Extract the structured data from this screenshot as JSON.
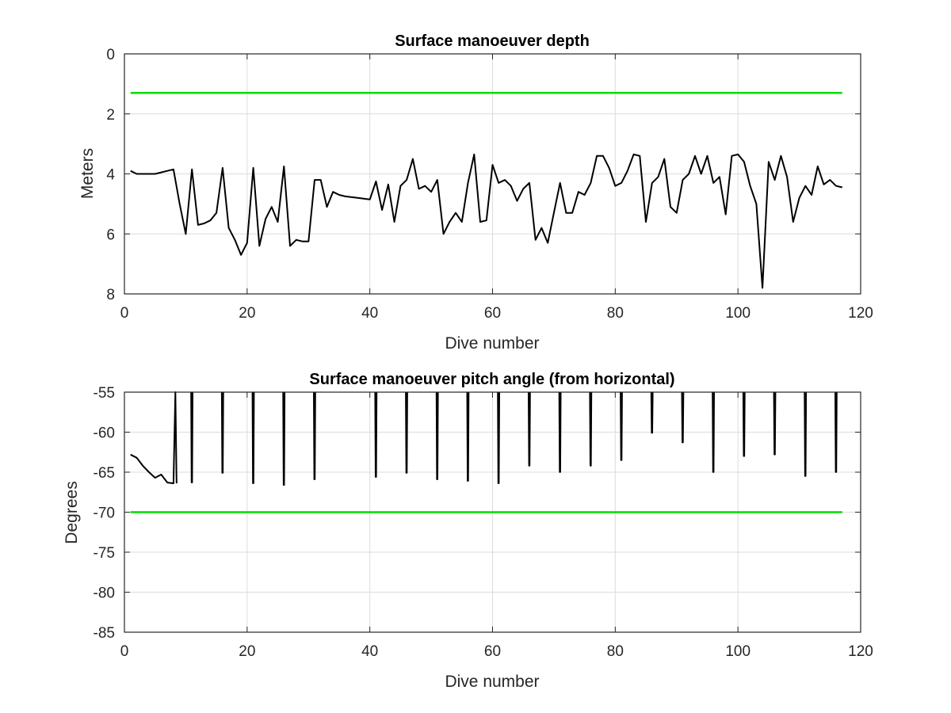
{
  "chart_data": [
    {
      "type": "line",
      "title": "Surface manoeuver depth",
      "xlabel": "Dive number",
      "ylabel": "Meters",
      "xlim": [
        0,
        120
      ],
      "ylim": [
        0,
        8
      ],
      "y_reversed": true,
      "grid": true,
      "xticks": [
        "0",
        "20",
        "40",
        "60",
        "80",
        "100",
        "120"
      ],
      "yticks": [
        "0",
        "2",
        "4",
        "6",
        "8"
      ],
      "reference_line": {
        "y": 1.3,
        "x_range": [
          1,
          117
        ],
        "color": "#00dd00"
      },
      "series": [
        {
          "color": "#000000",
          "points": [
            [
              1,
              3.9
            ],
            [
              2,
              4.0
            ],
            [
              3,
              4.0
            ],
            [
              4,
              4.0
            ],
            [
              5,
              4.0
            ],
            [
              6,
              3.95
            ],
            [
              7,
              3.9
            ],
            [
              8,
              3.85
            ],
            [
              9,
              5.0
            ],
            [
              10,
              6.0
            ],
            [
              11,
              3.85
            ],
            [
              12,
              5.7
            ],
            [
              13,
              5.65
            ],
            [
              14,
              5.55
            ],
            [
              15,
              5.3
            ],
            [
              16,
              3.8
            ],
            [
              17,
              5.8
            ],
            [
              18,
              6.2
            ],
            [
              19,
              6.7
            ],
            [
              20,
              6.3
            ],
            [
              21,
              3.8
            ],
            [
              22,
              6.4
            ],
            [
              23,
              5.5
            ],
            [
              24,
              5.1
            ],
            [
              25,
              5.6
            ],
            [
              26,
              3.75
            ],
            [
              27,
              6.4
            ],
            [
              28,
              6.2
            ],
            [
              29,
              6.25
            ],
            [
              30,
              6.25
            ],
            [
              31,
              4.2
            ],
            [
              32,
              4.2
            ],
            [
              33,
              5.1
            ],
            [
              34,
              4.6
            ],
            [
              35,
              4.7
            ],
            [
              36,
              4.75
            ],
            [
              38,
              4.8
            ],
            [
              40,
              4.85
            ],
            [
              41,
              4.25
            ],
            [
              42,
              5.2
            ],
            [
              43,
              4.35
            ],
            [
              44,
              5.6
            ],
            [
              45,
              4.4
            ],
            [
              46,
              4.2
            ],
            [
              47,
              3.5
            ],
            [
              48,
              4.5
            ],
            [
              49,
              4.4
            ],
            [
              50,
              4.6
            ],
            [
              51,
              4.2
            ],
            [
              52,
              6.0
            ],
            [
              53,
              5.6
            ],
            [
              54,
              5.3
            ],
            [
              55,
              5.6
            ],
            [
              56,
              4.3
            ],
            [
              57,
              3.35
            ],
            [
              58,
              5.6
            ],
            [
              59,
              5.55
            ],
            [
              60,
              3.7
            ],
            [
              61,
              4.3
            ],
            [
              62,
              4.2
            ],
            [
              63,
              4.4
            ],
            [
              64,
              4.9
            ],
            [
              65,
              4.5
            ],
            [
              66,
              4.3
            ],
            [
              67,
              6.2
            ],
            [
              68,
              5.8
            ],
            [
              69,
              6.3
            ],
            [
              70,
              5.3
            ],
            [
              71,
              4.3
            ],
            [
              72,
              5.3
            ],
            [
              73,
              5.3
            ],
            [
              74,
              4.6
            ],
            [
              75,
              4.7
            ],
            [
              76,
              4.3
            ],
            [
              77,
              3.4
            ],
            [
              78,
              3.4
            ],
            [
              79,
              3.8
            ],
            [
              80,
              4.4
            ],
            [
              81,
              4.3
            ],
            [
              82,
              3.9
            ],
            [
              83,
              3.35
            ],
            [
              84,
              3.4
            ],
            [
              85,
              5.6
            ],
            [
              86,
              4.3
            ],
            [
              87,
              4.1
            ],
            [
              88,
              3.5
            ],
            [
              89,
              5.1
            ],
            [
              90,
              5.3
            ],
            [
              91,
              4.2
            ],
            [
              92,
              4.0
            ],
            [
              93,
              3.4
            ],
            [
              94,
              4.0
            ],
            [
              95,
              3.4
            ],
            [
              96,
              4.3
            ],
            [
              97,
              4.1
            ],
            [
              98,
              5.35
            ],
            [
              99,
              3.4
            ],
            [
              100,
              3.35
            ],
            [
              101,
              3.6
            ],
            [
              102,
              4.4
            ],
            [
              103,
              5.0
            ],
            [
              104,
              7.8
            ],
            [
              105,
              3.6
            ],
            [
              106,
              4.2
            ],
            [
              107,
              3.4
            ],
            [
              108,
              4.1
            ],
            [
              109,
              5.6
            ],
            [
              110,
              4.8
            ],
            [
              111,
              4.4
            ],
            [
              112,
              4.7
            ],
            [
              113,
              3.75
            ],
            [
              114,
              4.35
            ],
            [
              115,
              4.2
            ],
            [
              116,
              4.4
            ],
            [
              117,
              4.45
            ]
          ]
        }
      ]
    },
    {
      "type": "line",
      "title": "Surface manoeuver pitch angle (from horizontal)",
      "xlabel": "Dive number",
      "ylabel": "Degrees",
      "xlim": [
        0,
        120
      ],
      "ylim": [
        -85,
        -55
      ],
      "grid": true,
      "xticks": [
        "0",
        "20",
        "40",
        "60",
        "80",
        "100",
        "120"
      ],
      "yticks": [
        "-55",
        "-60",
        "-65",
        "-70",
        "-75",
        "-80",
        "-85"
      ],
      "reference_line": {
        "y": -70,
        "x_range": [
          1,
          117
        ],
        "color": "#00dd00"
      },
      "series": [
        {
          "color": "#000000",
          "points": [
            [
              1,
              -62.8
            ],
            [
              2,
              -63.2
            ],
            [
              3,
              -64.2
            ],
            [
              4,
              -65.0
            ],
            [
              5,
              -65.7
            ],
            [
              6,
              -65.3
            ],
            [
              7,
              -66.3
            ],
            [
              8,
              -66.4
            ],
            [
              8.3,
              -55
            ],
            [
              8.5,
              -66.4
            ]
          ]
        }
      ],
      "spikes": [
        {
          "x": 11,
          "y": -66.3
        },
        {
          "x": 16,
          "y": -65.1
        },
        {
          "x": 21,
          "y": -66.4
        },
        {
          "x": 26,
          "y": -66.6
        },
        {
          "x": 31,
          "y": -65.9
        },
        {
          "x": 41,
          "y": -65.6
        },
        {
          "x": 46,
          "y": -65.1
        },
        {
          "x": 51,
          "y": -65.9
        },
        {
          "x": 56,
          "y": -66.1
        },
        {
          "x": 61,
          "y": -66.4
        },
        {
          "x": 66,
          "y": -64.2
        },
        {
          "x": 71,
          "y": -65.0
        },
        {
          "x": 76,
          "y": -64.2
        },
        {
          "x": 81,
          "y": -63.5
        },
        {
          "x": 86,
          "y": -60.1
        },
        {
          "x": 91,
          "y": -61.3
        },
        {
          "x": 96,
          "y": -65.0
        },
        {
          "x": 101,
          "y": -63.0
        },
        {
          "x": 106,
          "y": -62.8
        },
        {
          "x": 111,
          "y": -65.5
        },
        {
          "x": 116,
          "y": -65.0
        }
      ]
    }
  ]
}
